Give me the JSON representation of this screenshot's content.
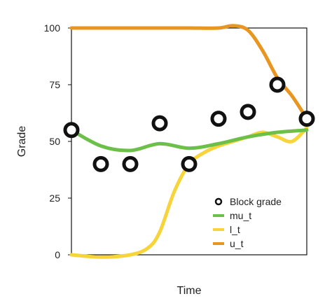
{
  "chart_data": {
    "type": "line",
    "title": "",
    "xlabel": "Time",
    "ylabel": "Grade",
    "xlim": [
      0,
      8
    ],
    "ylim": [
      0,
      100
    ],
    "yticks": [
      0,
      25,
      50,
      75,
      100
    ],
    "ytick_labels": [
      "0",
      "25",
      "50",
      "75",
      "100"
    ],
    "grid": false,
    "legend_position": "bottom-right",
    "series": [
      {
        "name": "u_t",
        "kind": "line",
        "color": "#e8961f",
        "x": [
          0,
          1,
          2,
          3,
          4,
          5,
          5.5,
          6,
          6.5,
          7,
          7.5,
          8
        ],
        "y": [
          100,
          100,
          100,
          100,
          100,
          100,
          101,
          99,
          90,
          78,
          70,
          60
        ]
      },
      {
        "name": "l_t",
        "kind": "line",
        "color": "#f7d43a",
        "x": [
          0,
          1,
          2,
          2.6,
          3,
          3.5,
          4,
          4.5,
          5,
          5.5,
          6,
          6.5,
          7,
          7.5,
          8
        ],
        "y": [
          0,
          -1,
          0,
          3,
          10,
          28,
          40,
          45,
          48,
          50,
          52,
          54,
          52,
          50,
          56
        ]
      },
      {
        "name": "mu_t",
        "kind": "line",
        "color": "#6cc04a",
        "x": [
          0,
          1,
          2,
          3,
          4,
          5,
          6,
          7,
          8
        ],
        "y": [
          55,
          48,
          46,
          49,
          47,
          49,
          52,
          54,
          55
        ]
      },
      {
        "name": "Block grade",
        "kind": "scatter",
        "color": "#111111",
        "x": [
          0,
          1,
          2,
          3,
          4,
          5,
          6,
          7,
          8
        ],
        "y": [
          55,
          40,
          40,
          58,
          40,
          60,
          63,
          75,
          60
        ]
      }
    ],
    "legend_order": [
      "Block grade",
      "mu_t",
      "l_t",
      "u_t"
    ]
  }
}
